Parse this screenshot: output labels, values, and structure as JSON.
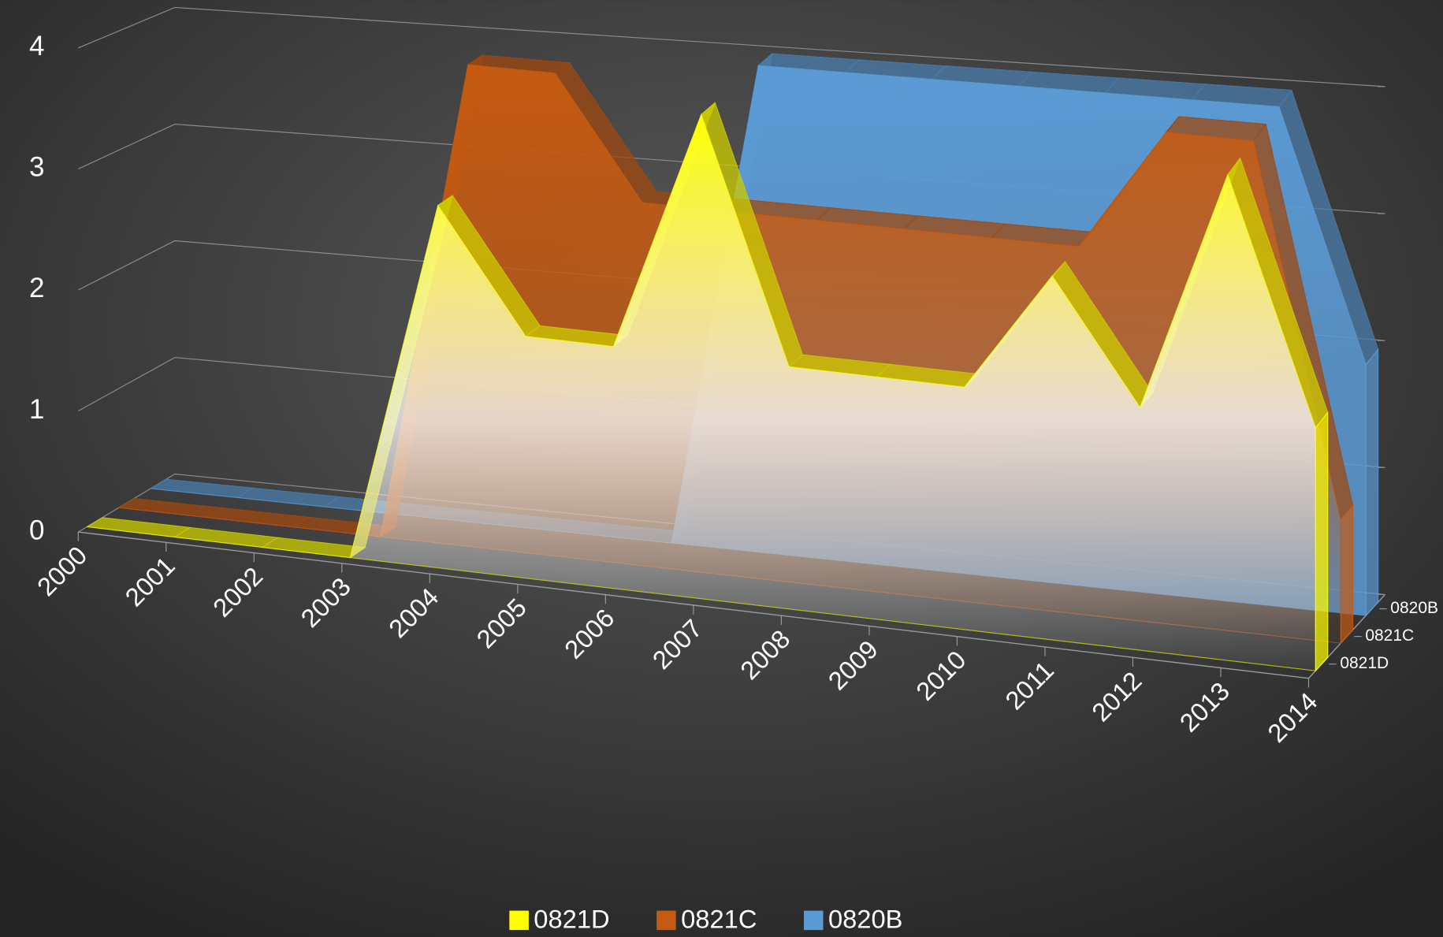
{
  "chart_data": {
    "type": "area3d",
    "categories": [
      "2000",
      "2001",
      "2002",
      "2003",
      "2004",
      "2005",
      "2006",
      "2007",
      "2008",
      "2009",
      "2010",
      "2011",
      "2012",
      "2013",
      "2014"
    ],
    "series": [
      {
        "name": "0821D",
        "color": "#ffff00",
        "values": [
          0,
          0,
          0,
          0,
          3,
          2,
          2,
          4,
          2,
          2,
          2,
          3,
          2,
          4,
          2
        ]
      },
      {
        "name": "0821C",
        "color": "#c55a11",
        "values": [
          0,
          0,
          0,
          0,
          4,
          4,
          3,
          3,
          3,
          3,
          3,
          3,
          4,
          4,
          1
        ]
      },
      {
        "name": "0820B",
        "color": "#5b9bd5",
        "values": [
          0,
          0,
          0,
          0,
          0,
          0,
          0,
          4,
          4,
          4,
          4,
          4,
          4,
          4,
          2
        ]
      }
    ],
    "ylim": [
      0,
      4
    ],
    "yticks": [
      0,
      1,
      2,
      3,
      4
    ],
    "grid": true,
    "legend": "bottom"
  }
}
